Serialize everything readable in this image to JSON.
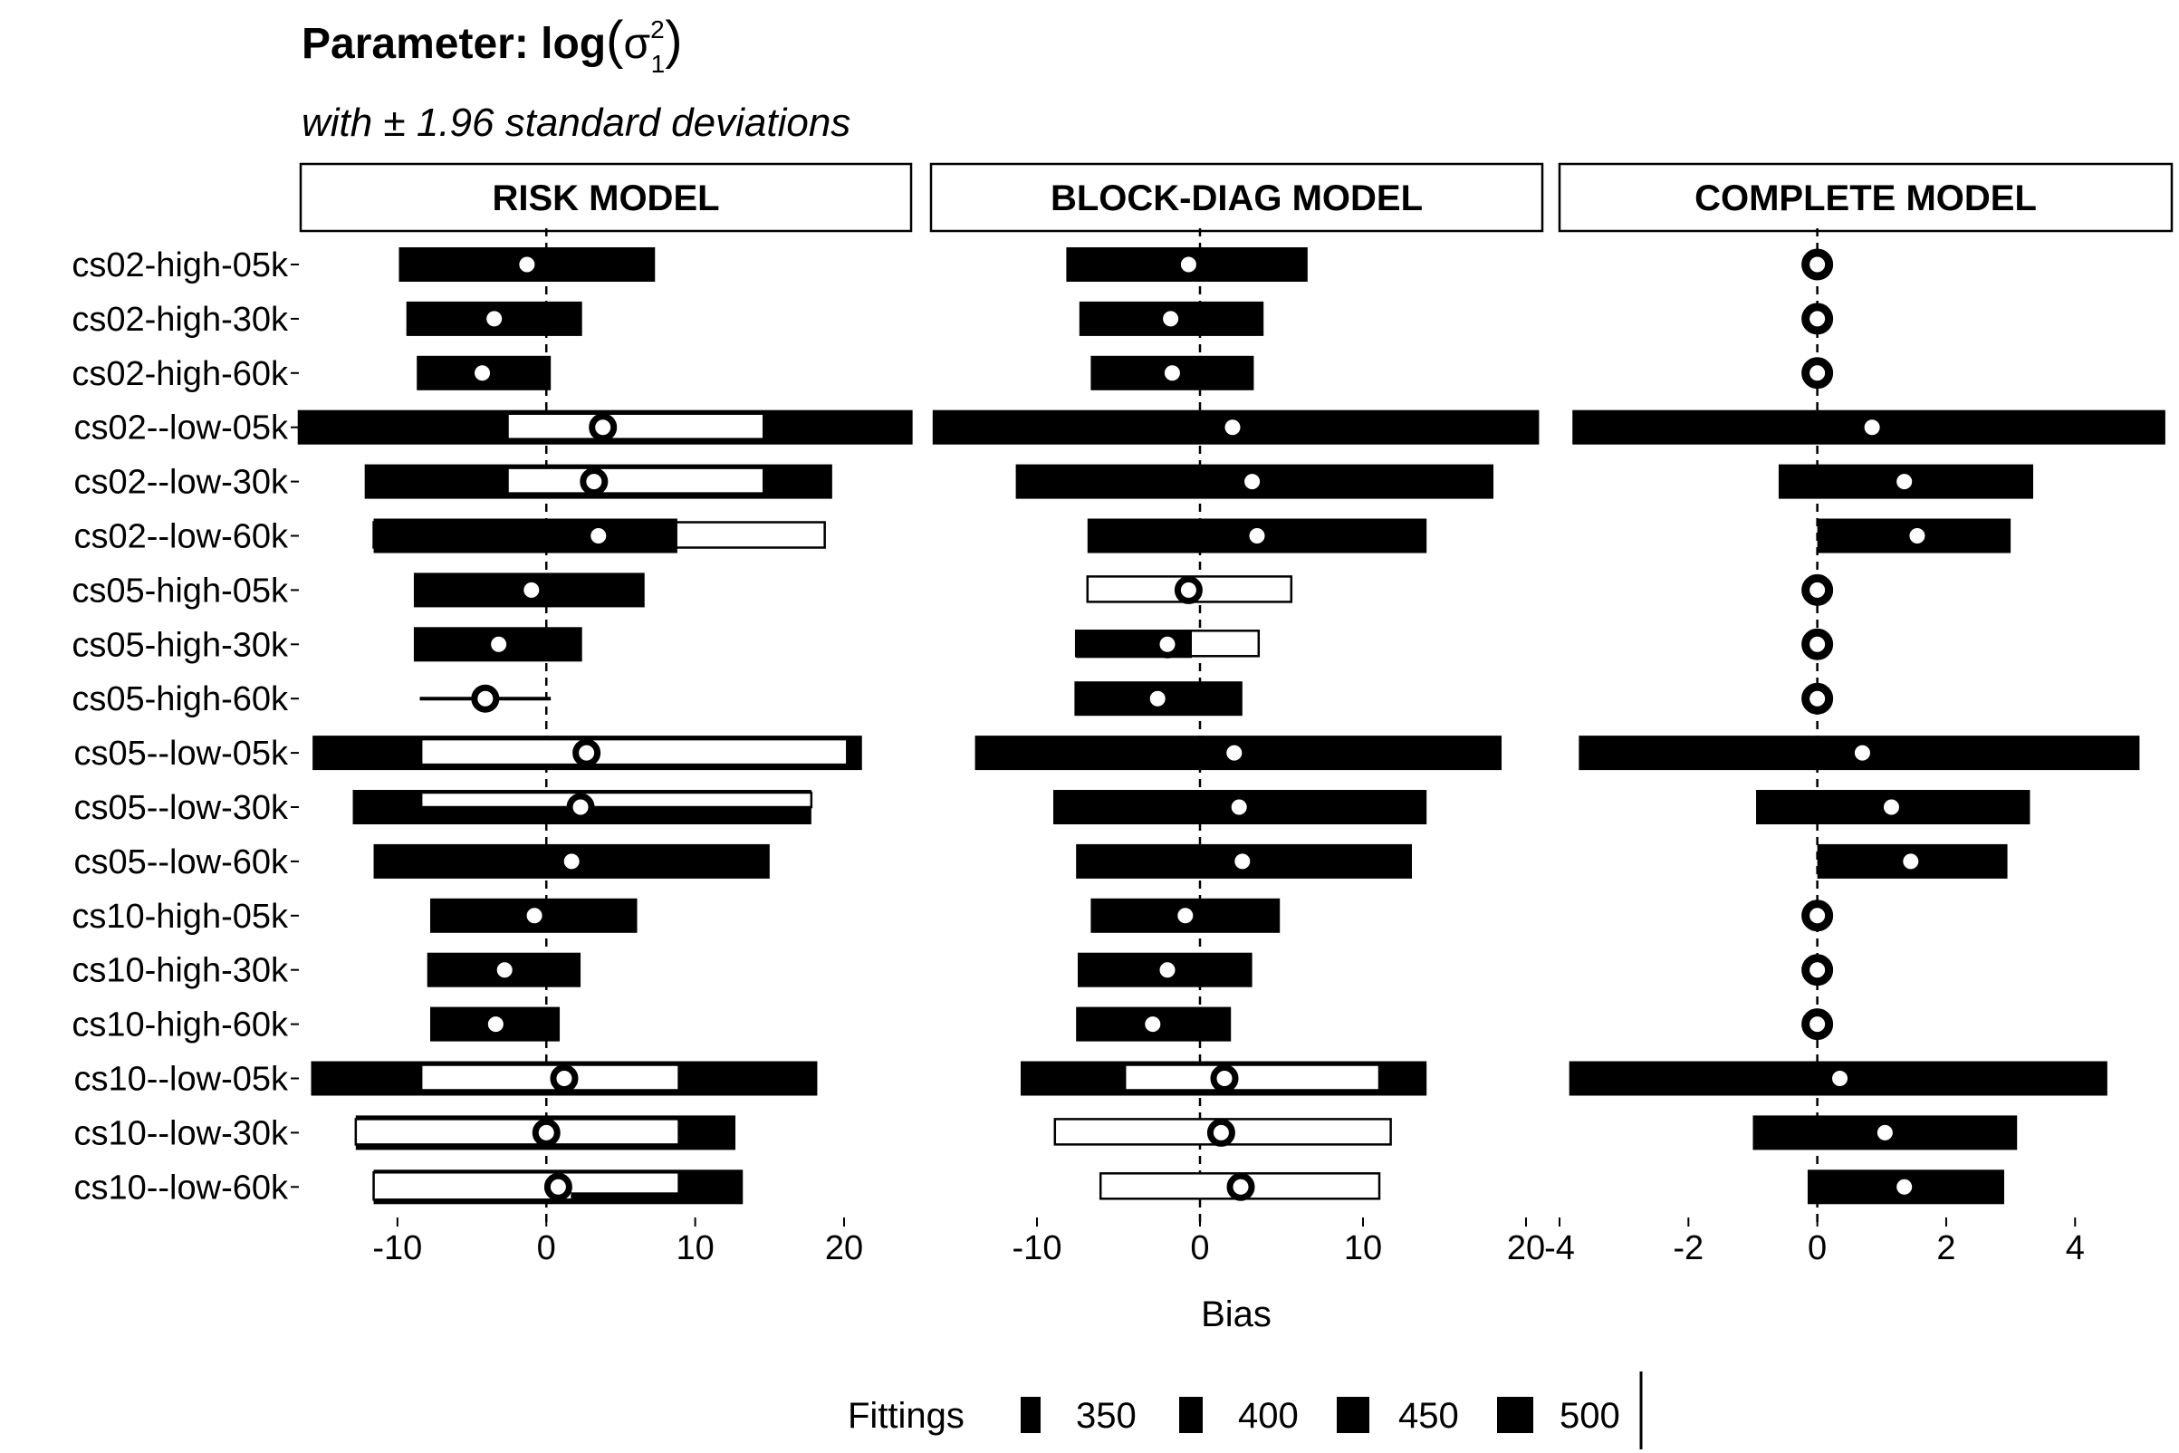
{
  "chart_data": {
    "type": "bar",
    "title_prefix": "Parameter: log",
    "title_sigma": "σ",
    "title_sup": "2",
    "title_sub": "1",
    "subtitle": "with ± 1.96 standard deviations",
    "xlabel": "Bias",
    "legend": {
      "title": "Fittings",
      "entries": [
        "350",
        "400",
        "450",
        "500"
      ],
      "placement": "bottom"
    },
    "categories": [
      "cs02-high-05k",
      "cs02-high-30k",
      "cs02-high-60k",
      "cs02--low-05k",
      "cs02--low-30k",
      "cs02--low-60k",
      "cs05-high-05k",
      "cs05-high-30k",
      "cs05-high-60k",
      "cs05--low-05k",
      "cs05--low-30k",
      "cs05--low-60k",
      "cs10-high-05k",
      "cs10-high-30k",
      "cs10-high-60k",
      "cs10--low-05k",
      "cs10--low-30k",
      "cs10--low-60k"
    ],
    "panels": [
      {
        "name": "RISK MODEL",
        "xlim": [
          -16.5,
          24.5
        ],
        "ticks": [
          {
            "v": -10,
            "label": "-10"
          },
          {
            "v": 0,
            "label": "0"
          },
          {
            "v": 10,
            "label": "10"
          },
          {
            "v": 20,
            "label": "20"
          }
        ],
        "rows": [
          {
            "point": -1.3,
            "bars": [
              {
                "lo": -9.9,
                "hi": 7.3,
                "fill": "filled"
              }
            ]
          },
          {
            "point": -3.5,
            "bars": [
              {
                "lo": -9.4,
                "hi": 2.4,
                "fill": "filled"
              }
            ]
          },
          {
            "point": -4.3,
            "bars": [
              {
                "lo": -8.7,
                "hi": 0.3,
                "fill": "filled"
              }
            ]
          },
          {
            "point": 3.8,
            "bars": [
              {
                "lo": -16.7,
                "hi": 24.6,
                "fill": "filled"
              },
              {
                "lo": -2.6,
                "hi": 14.6,
                "fill": "open"
              }
            ]
          },
          {
            "point": 3.2,
            "bars": [
              {
                "lo": -12.2,
                "hi": 19.2,
                "fill": "filled"
              },
              {
                "lo": -2.6,
                "hi": 14.6,
                "fill": "open"
              }
            ]
          },
          {
            "point": 3.5,
            "bars": [
              {
                "lo": -11.6,
                "hi": 18.7,
                "fill": "open"
              },
              {
                "lo": -11.6,
                "hi": 8.8,
                "fill": "filled"
              }
            ]
          },
          {
            "point": -1.0,
            "bars": [
              {
                "lo": -8.9,
                "hi": 6.6,
                "fill": "filled"
              }
            ]
          },
          {
            "point": -3.2,
            "bars": [
              {
                "lo": -8.9,
                "hi": 2.4,
                "fill": "filled"
              }
            ]
          },
          {
            "point": -4.1,
            "bars": [
              {
                "lo": -8.5,
                "hi": 0.3,
                "fill": "line"
              }
            ]
          },
          {
            "point": 2.7,
            "bars": [
              {
                "lo": -15.7,
                "hi": 21.2,
                "fill": "filled"
              },
              {
                "lo": -8.4,
                "hi": 20.2,
                "fill": "open"
              }
            ]
          },
          {
            "point": 2.3,
            "bars": [
              {
                "lo": -13.0,
                "hi": 17.8,
                "fill": "filled"
              },
              {
                "lo": -8.4,
                "hi": 17.8,
                "fill": "open-top"
              }
            ]
          },
          {
            "point": 1.7,
            "bars": [
              {
                "lo": -11.6,
                "hi": 15.0,
                "fill": "filled"
              }
            ]
          },
          {
            "point": -0.8,
            "bars": [
              {
                "lo": -7.8,
                "hi": 6.1,
                "fill": "filled"
              }
            ]
          },
          {
            "point": -2.8,
            "bars": [
              {
                "lo": -8.0,
                "hi": 2.3,
                "fill": "filled"
              }
            ]
          },
          {
            "point": -3.4,
            "bars": [
              {
                "lo": -7.8,
                "hi": 0.9,
                "fill": "filled"
              }
            ]
          },
          {
            "point": 1.2,
            "bars": [
              {
                "lo": -15.8,
                "hi": 18.2,
                "fill": "filled"
              },
              {
                "lo": -8.4,
                "hi": 8.9,
                "fill": "open"
              }
            ]
          },
          {
            "point": 0.0,
            "bars": [
              {
                "lo": -12.8,
                "hi": 12.7,
                "fill": "filled"
              },
              {
                "lo": -12.8,
                "hi": 8.9,
                "fill": "open"
              }
            ]
          },
          {
            "point": 0.8,
            "bars": [
              {
                "lo": -11.6,
                "hi": 13.2,
                "fill": "filled"
              },
              {
                "lo": -11.6,
                "hi": 8.9,
                "fill": "open-corner"
              }
            ]
          }
        ]
      },
      {
        "name": "BLOCK-DIAG MODEL",
        "xlim": [
          -16.5,
          21.0
        ],
        "ticks": [
          {
            "v": -10,
            "label": "-10"
          },
          {
            "v": 0,
            "label": "0"
          },
          {
            "v": 10,
            "label": "10"
          },
          {
            "v": 20,
            "label": "20"
          }
        ],
        "rows": [
          {
            "point": -0.7,
            "bars": [
              {
                "lo": -8.2,
                "hi": 6.6,
                "fill": "filled"
              }
            ]
          },
          {
            "point": -1.8,
            "bars": [
              {
                "lo": -7.4,
                "hi": 3.9,
                "fill": "filled"
              }
            ]
          },
          {
            "point": -1.7,
            "bars": [
              {
                "lo": -6.7,
                "hi": 3.3,
                "fill": "filled"
              }
            ]
          },
          {
            "point": 2.0,
            "bars": [
              {
                "lo": -16.4,
                "hi": 20.8,
                "fill": "filled"
              }
            ]
          },
          {
            "point": 3.2,
            "bars": [
              {
                "lo": -11.3,
                "hi": 18.0,
                "fill": "filled"
              }
            ]
          },
          {
            "point": 3.5,
            "bars": [
              {
                "lo": -6.9,
                "hi": 13.9,
                "fill": "filled"
              }
            ]
          },
          {
            "point": -0.7,
            "bars": [
              {
                "lo": -6.9,
                "hi": 5.6,
                "fill": "open"
              }
            ]
          },
          {
            "point": -2.0,
            "bars": [
              {
                "lo": -7.6,
                "hi": 3.6,
                "fill": "open"
              },
              {
                "lo": -7.6,
                "hi": -0.5,
                "fill": "filled-partial"
              }
            ]
          },
          {
            "point": -2.6,
            "bars": [
              {
                "lo": -7.7,
                "hi": 2.6,
                "fill": "filled"
              }
            ]
          },
          {
            "point": 2.1,
            "bars": [
              {
                "lo": -13.8,
                "hi": 18.5,
                "fill": "filled"
              }
            ]
          },
          {
            "point": 2.4,
            "bars": [
              {
                "lo": -9.0,
                "hi": 13.9,
                "fill": "filled"
              }
            ]
          },
          {
            "point": 2.6,
            "bars": [
              {
                "lo": -7.6,
                "hi": 13.0,
                "fill": "filled"
              }
            ]
          },
          {
            "point": -0.9,
            "bars": [
              {
                "lo": -6.7,
                "hi": 4.9,
                "fill": "filled"
              }
            ]
          },
          {
            "point": -2.0,
            "bars": [
              {
                "lo": -7.5,
                "hi": 3.2,
                "fill": "filled"
              }
            ]
          },
          {
            "point": -2.9,
            "bars": [
              {
                "lo": -7.6,
                "hi": 1.9,
                "fill": "filled"
              }
            ]
          },
          {
            "point": 1.5,
            "bars": [
              {
                "lo": -11.0,
                "hi": 13.9,
                "fill": "filled"
              },
              {
                "lo": -4.6,
                "hi": 11.0,
                "fill": "open"
              }
            ]
          },
          {
            "point": 1.3,
            "bars": [
              {
                "lo": -8.9,
                "hi": 11.7,
                "fill": "open"
              }
            ]
          },
          {
            "point": 2.5,
            "bars": [
              {
                "lo": -6.1,
                "hi": 11.0,
                "fill": "open"
              }
            ]
          }
        ]
      },
      {
        "name": "COMPLETE MODEL",
        "xlim": [
          -4.0,
          5.5
        ],
        "ticks": [
          {
            "v": -4,
            "label": "-4"
          },
          {
            "v": -2,
            "label": "-2"
          },
          {
            "v": 0,
            "label": "0"
          },
          {
            "v": 2,
            "label": "2"
          },
          {
            "v": 4,
            "label": "4"
          }
        ],
        "rows": [
          {
            "point": 0.0,
            "bars": []
          },
          {
            "point": 0.0,
            "bars": []
          },
          {
            "point": 0.0,
            "bars": []
          },
          {
            "point": 0.85,
            "bars": [
              {
                "lo": -3.8,
                "hi": 5.4,
                "fill": "filled"
              }
            ]
          },
          {
            "point": 1.35,
            "bars": [
              {
                "lo": -0.6,
                "hi": 3.35,
                "fill": "filled"
              }
            ]
          },
          {
            "point": 1.55,
            "bars": [
              {
                "lo": 0.0,
                "hi": 3.0,
                "fill": "filled"
              }
            ]
          },
          {
            "point": 0.0,
            "bars": []
          },
          {
            "point": 0.0,
            "bars": []
          },
          {
            "point": 0.0,
            "bars": []
          },
          {
            "point": 0.7,
            "bars": [
              {
                "lo": -3.7,
                "hi": 5.0,
                "fill": "filled"
              }
            ]
          },
          {
            "point": 1.15,
            "bars": [
              {
                "lo": -0.95,
                "hi": 3.3,
                "fill": "filled"
              }
            ]
          },
          {
            "point": 1.45,
            "bars": [
              {
                "lo": 0.0,
                "hi": 2.95,
                "fill": "filled"
              }
            ]
          },
          {
            "point": 0.0,
            "bars": []
          },
          {
            "point": 0.0,
            "bars": []
          },
          {
            "point": 0.0,
            "bars": []
          },
          {
            "point": 0.35,
            "bars": [
              {
                "lo": -3.85,
                "hi": 4.5,
                "fill": "filled"
              }
            ]
          },
          {
            "point": 1.05,
            "bars": [
              {
                "lo": -1.0,
                "hi": 3.1,
                "fill": "filled"
              }
            ]
          },
          {
            "point": 1.35,
            "bars": [
              {
                "lo": -0.15,
                "hi": 2.9,
                "fill": "filled"
              }
            ]
          }
        ]
      }
    ],
    "grid": false,
    "colors": {
      "bar": "#000000",
      "background": "#ffffff",
      "point_fill": "#ffffff"
    }
  }
}
